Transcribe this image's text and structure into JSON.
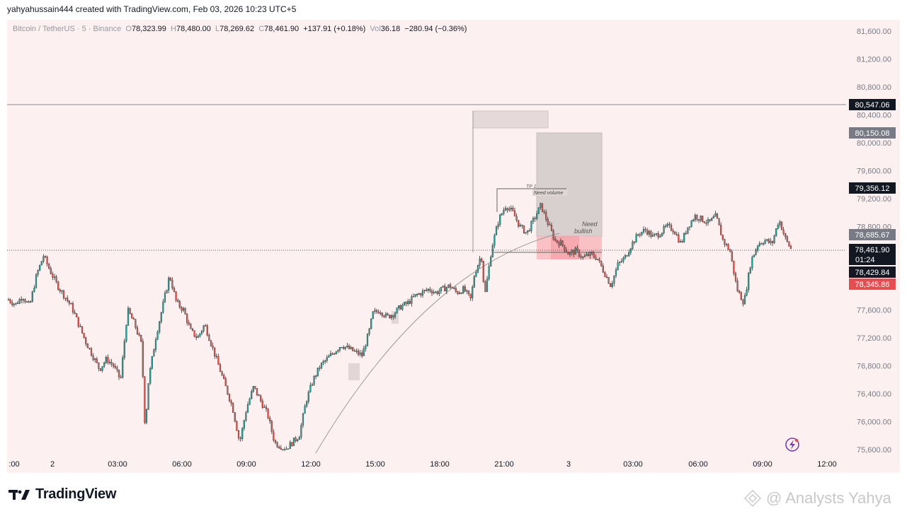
{
  "header": {
    "credit": "yahyahussain444 created with TradingView.com, Feb 03, 2026 10:23 UTC+5"
  },
  "legend": {
    "symbol": "Bitcoin / TetherUS · 5 · Binance",
    "o_label": "O",
    "o": "78,323.99",
    "h_label": "H",
    "h": "78,480.00",
    "l_label": "L",
    "l": "78,269.62",
    "c_label": "C",
    "c": "78,461.90",
    "change": "+137.91 (+0.18%)",
    "vol_label": "Vol",
    "vol": "36.18",
    "vol_change": "−280.94 (−0.36%)"
  },
  "price_axis": {
    "ticks": [
      "81,600.00",
      "81,200.00",
      "80,800.00",
      "80,400.00",
      "80,000.00",
      "79,600.00",
      "79,200.00",
      "78,800.00",
      "77,600.00",
      "77,200.00",
      "76,800.00",
      "76,400.00",
      "76,000.00",
      "75,600.00"
    ]
  },
  "price_labels": {
    "resistance": "80,547.06",
    "zone_top": "80,150.08",
    "tp_level": "79,356.12",
    "mid_level": "78,685.67",
    "last_price": "78,461.90",
    "countdown": "01:24",
    "bid": "78,429.84",
    "low_level": "78,345.86"
  },
  "time_axis": {
    "ticks": [
      ":00",
      "2",
      "03:00",
      "06:00",
      "09:00",
      "12:00",
      "15:00",
      "18:00",
      "21:00",
      "3",
      "03:00",
      "06:00",
      "09:00",
      "12:00"
    ]
  },
  "annotations": {
    "tp1": "TP 1",
    "need_volume": "Need volume",
    "need": "Need",
    "bullish": "bullish"
  },
  "footer": {
    "brand": "TradingView",
    "watermark": "@ Analysts Yahya"
  },
  "colors": {
    "bull": "#26a69a",
    "bear": "#ef5350",
    "candle": "#333333",
    "background": "#fdf0f0",
    "red_label": "#e84c53",
    "grey_label": "#787b86"
  },
  "chart_data": {
    "type": "candlestick",
    "symbol": "Bitcoin / TetherUS",
    "interval": "5",
    "exchange": "Binance",
    "y_range": [
      75600,
      81600
    ],
    "x_range": [
      "Feb 1 23:00",
      "Feb 3 12:00"
    ],
    "key_levels": [
      80547.06,
      80150.08,
      79356.12,
      78685.67,
      78461.9,
      78429.84,
      78345.86
    ],
    "path_points": [
      [
        0,
        77750
      ],
      [
        10,
        77680
      ],
      [
        20,
        77800
      ],
      [
        30,
        77650
      ],
      [
        40,
        78100
      ],
      [
        50,
        78380
      ],
      [
        60,
        78150
      ],
      [
        70,
        77950
      ],
      [
        80,
        77800
      ],
      [
        90,
        77650
      ],
      [
        100,
        77400
      ],
      [
        110,
        77150
      ],
      [
        120,
        76950
      ],
      [
        130,
        76750
      ],
      [
        140,
        76900
      ],
      [
        150,
        76800
      ],
      [
        160,
        76600
      ],
      [
        170,
        77600
      ],
      [
        180,
        77400
      ],
      [
        190,
        77100
      ],
      [
        195,
        75900
      ],
      [
        200,
        76600
      ],
      [
        210,
        77200
      ],
      [
        220,
        77650
      ],
      [
        230,
        78100
      ],
      [
        240,
        77700
      ],
      [
        250,
        77600
      ],
      [
        260,
        77300
      ],
      [
        270,
        77200
      ],
      [
        280,
        77400
      ],
      [
        290,
        77100
      ],
      [
        300,
        76800
      ],
      [
        310,
        76500
      ],
      [
        320,
        76200
      ],
      [
        330,
        75700
      ],
      [
        340,
        76200
      ],
      [
        350,
        76500
      ],
      [
        360,
        76300
      ],
      [
        370,
        76100
      ],
      [
        380,
        75700
      ],
      [
        395,
        75600
      ],
      [
        405,
        75700
      ],
      [
        415,
        75800
      ],
      [
        425,
        76300
      ],
      [
        435,
        76600
      ],
      [
        445,
        76800
      ],
      [
        455,
        76900
      ],
      [
        465,
        77000
      ],
      [
        475,
        77100
      ],
      [
        485,
        77050
      ],
      [
        495,
        77000
      ],
      [
        505,
        76950
      ],
      [
        515,
        77300
      ],
      [
        520,
        77550
      ],
      [
        530,
        77600
      ],
      [
        540,
        77500
      ],
      [
        550,
        77550
      ],
      [
        560,
        77650
      ],
      [
        570,
        77700
      ],
      [
        580,
        77800
      ],
      [
        590,
        77850
      ],
      [
        600,
        77900
      ],
      [
        610,
        77850
      ],
      [
        620,
        77900
      ],
      [
        630,
        77950
      ],
      [
        640,
        77850
      ],
      [
        650,
        77900
      ],
      [
        660,
        77750
      ],
      [
        665,
        78100
      ],
      [
        675,
        78400
      ],
      [
        680,
        77800
      ],
      [
        690,
        78500
      ],
      [
        700,
        78900
      ],
      [
        710,
        79100
      ],
      [
        720,
        79000
      ],
      [
        730,
        78800
      ],
      [
        740,
        78700
      ],
      [
        750,
        78900
      ],
      [
        760,
        79100
      ],
      [
        770,
        78850
      ],
      [
        780,
        78600
      ],
      [
        790,
        78550
      ],
      [
        800,
        78400
      ],
      [
        810,
        78450
      ],
      [
        820,
        78350
      ],
      [
        830,
        78400
      ],
      [
        840,
        78350
      ],
      [
        850,
        78150
      ],
      [
        860,
        77950
      ],
      [
        870,
        78250
      ],
      [
        880,
        78350
      ],
      [
        890,
        78550
      ],
      [
        900,
        78700
      ],
      [
        910,
        78750
      ],
      [
        920,
        78650
      ],
      [
        930,
        78700
      ],
      [
        940,
        78800
      ],
      [
        950,
        78750
      ],
      [
        960,
        78550
      ],
      [
        970,
        78800
      ],
      [
        980,
        78950
      ],
      [
        990,
        78900
      ],
      [
        1000,
        78850
      ],
      [
        1010,
        78950
      ],
      [
        1020,
        78600
      ],
      [
        1030,
        78450
      ],
      [
        1040,
        77900
      ],
      [
        1050,
        77700
      ],
      [
        1060,
        78300
      ],
      [
        1070,
        78550
      ],
      [
        1080,
        78600
      ],
      [
        1090,
        78550
      ],
      [
        1100,
        78900
      ],
      [
        1110,
        78600
      ],
      [
        1118,
        78461.9
      ]
    ]
  }
}
